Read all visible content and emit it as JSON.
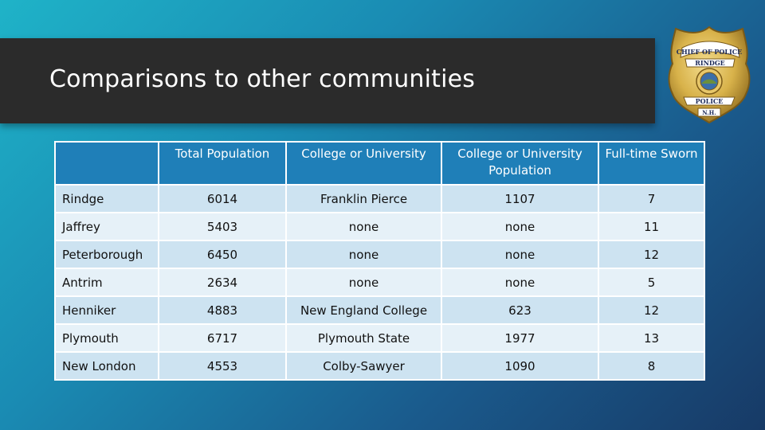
{
  "title": "Comparisons to other communities",
  "badge": {
    "icon": "police-badge-icon",
    "top_text": "CHIEF OF POLICE",
    "town": "RINDGE",
    "ribbon": "POLICE",
    "state": "N.H."
  },
  "table": {
    "headers": [
      "",
      "Total Population",
      "College or University",
      "College or University Population",
      "Full-time Sworn"
    ],
    "rows": [
      [
        "Rindge",
        "6014",
        "Franklin Pierce",
        "1107",
        "7"
      ],
      [
        "Jaffrey",
        "5403",
        "none",
        "none",
        "11"
      ],
      [
        "Peterborough",
        "6450",
        "none",
        "none",
        "12"
      ],
      [
        "Antrim",
        "2634",
        "none",
        "none",
        "5"
      ],
      [
        "Henniker",
        "4883",
        "New England College",
        "623",
        "12"
      ],
      [
        "Plymouth",
        "6717",
        "Plymouth State",
        "1977",
        "13"
      ],
      [
        "New London",
        "4553",
        "Colby-Sawyer",
        "1090",
        "8"
      ]
    ]
  },
  "colors": {
    "header_bg": "#1f7fb8",
    "row_odd": "#cde3f1",
    "row_even": "#e6f1f8",
    "title_bar": "#2b2b2b",
    "badge_gold": "#d8b24a"
  }
}
